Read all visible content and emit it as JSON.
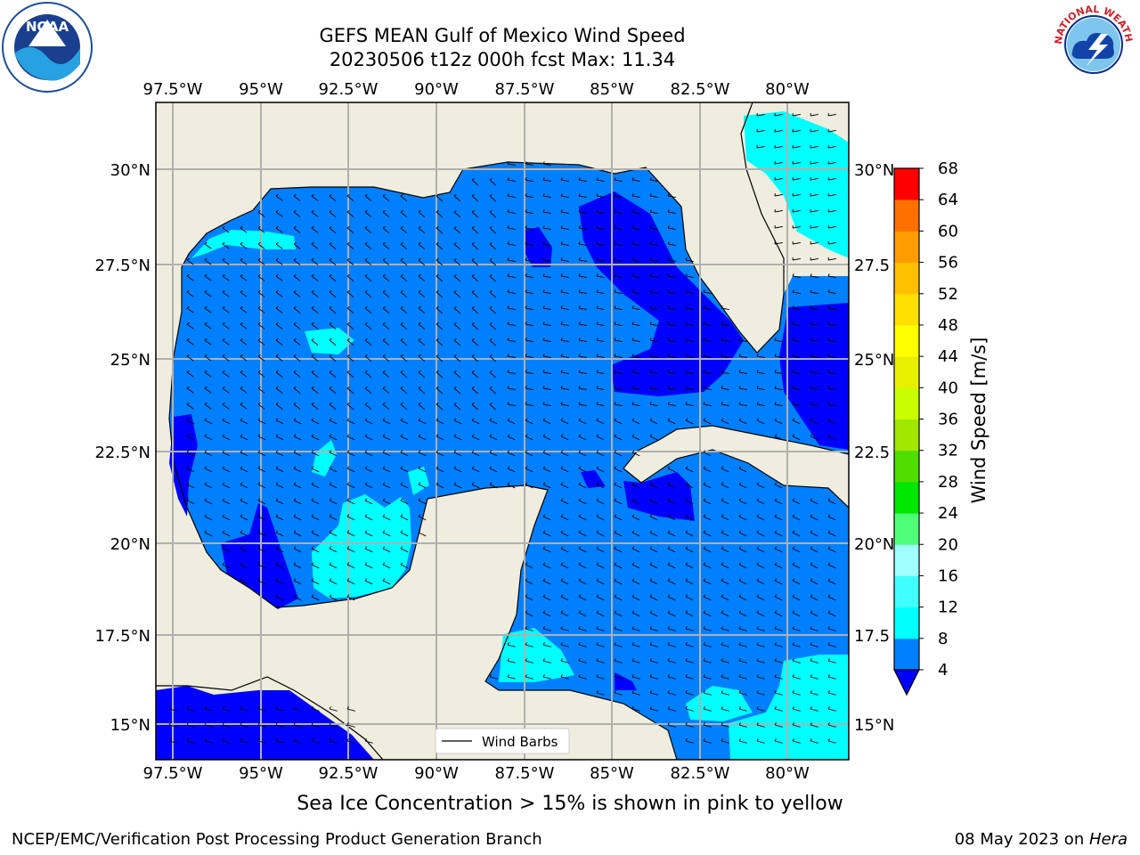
{
  "title": {
    "line1": "GEFS MEAN Gulf of Mexico Wind Speed",
    "line2": "20230506 t12z 000h fcst   Max: 11.34"
  },
  "map": {
    "lon_labels": [
      "97.5°W",
      "95°W",
      "92.5°W",
      "90°W",
      "87.5°W",
      "85°W",
      "82.5°W",
      "80°W"
    ],
    "lat_labels": [
      "30°N",
      "27.5°N",
      "25°N",
      "22.5°N",
      "20°N",
      "17.5°N",
      "15°N"
    ],
    "lat_labels_right": [
      "30°N",
      "27.5",
      "25°N",
      "22.5",
      "20°N",
      "17.5",
      "15°N"
    ],
    "legend_label": "Wind Barbs",
    "colors": {
      "land": "#efedde",
      "ocean_4_8": "#0080ff",
      "ocean_below_4": "#0000ff",
      "ocean_8_12": "#00ffff",
      "ocean_12_16": "#40ffff"
    }
  },
  "colorbar": {
    "label": "Wind Speed [m/s]",
    "ticks": [
      "4",
      "8",
      "12",
      "16",
      "20",
      "24",
      "28",
      "32",
      "36",
      "40",
      "44",
      "48",
      "52",
      "56",
      "60",
      "64",
      "68"
    ],
    "colors": [
      "#0080ff",
      "#00ffff",
      "#40ffff",
      "#a0ffff",
      "#50ff78",
      "#00e800",
      "#50dd00",
      "#a0e800",
      "#c8ff00",
      "#e8f000",
      "#ffff00",
      "#ffe000",
      "#ffc000",
      "#ff9c00",
      "#ff7000",
      "#ff4000",
      "#ff0000"
    ],
    "under_color": "#0000ff"
  },
  "footer_note": "Sea Ice Concentration > 15% is shown in pink to yellow",
  "footer_left": "NCEP/EMC/Verification Post Processing Product Generation Branch",
  "footer_right_date": "08 May 2023 on ",
  "footer_right_machine": "Hera",
  "logos": {
    "noaa_text": "NOAA",
    "nws_ring": "NATIONAL WEATHER SERVICE"
  }
}
